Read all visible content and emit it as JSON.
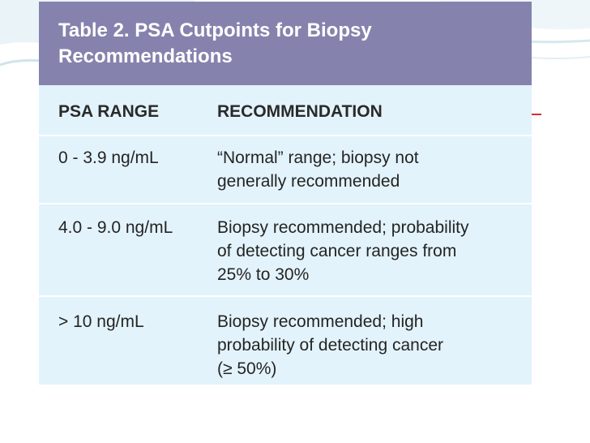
{
  "table": {
    "title_line1": "Table 2. PSA Cutpoints for Biopsy",
    "title_line2": "Recommendations",
    "headers": {
      "range": "PSA RANGE",
      "recommendation": "RECOMMENDATION"
    },
    "rows": [
      {
        "range": "0 - 3.9 ng/mL",
        "rec_lines": [
          "“Normal” range; biopsy not",
          "generally recommended"
        ]
      },
      {
        "range": "4.0 - 9.0 ng/mL",
        "rec_lines": [
          "Biopsy recommended; probability",
          "of detecting cancer ranges from",
          "25% to 30%"
        ]
      },
      {
        "range": "> 10 ng/mL",
        "rec_lines": [
          "Biopsy recommended; high",
          "probability of detecting cancer",
          "(≥ 50%)"
        ]
      }
    ]
  },
  "colors": {
    "title_band": "#8583ad",
    "table_body": "#e3f3fb",
    "accent_mark": "#d62f2f"
  }
}
